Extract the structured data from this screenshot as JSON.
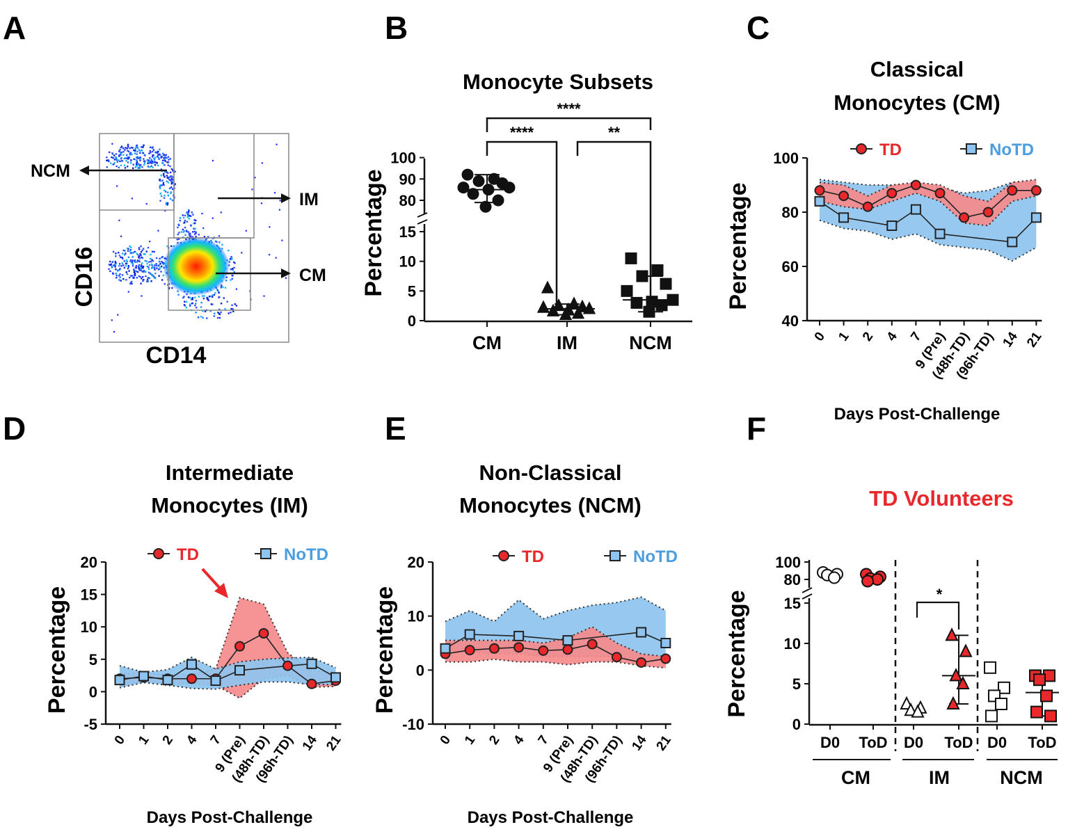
{
  "colors": {
    "td": "#e8282b",
    "td_band": "#f58a8c",
    "notd": "#5aa8e6",
    "notd_band": "#8ec4ef",
    "notd_text": "#4a9ee0",
    "text": "#111111"
  },
  "panels": {
    "a": "A",
    "b": "B",
    "c": "C",
    "d": "D",
    "e": "E",
    "f": "F"
  },
  "panel_a": {
    "xlabel": "CD14",
    "ylabel": "CD16",
    "gates": {
      "ncm": "NCM",
      "im": "IM",
      "cm": "CM"
    }
  },
  "panel_f": {
    "title": "TD Volunteers",
    "group_labels": [
      "CM",
      "IM",
      "NCM"
    ],
    "sub_labels": [
      "D0",
      "ToD"
    ]
  },
  "x_axis_title": "Days Post-Challenge",
  "y_axis_title": "Percentage",
  "chart_data": [
    {
      "id": "B",
      "type": "scatter",
      "title": "Monocyte Subsets",
      "ylabel": "Percentage",
      "categories": [
        "CM",
        "IM",
        "NCM"
      ],
      "y_break": [
        15,
        75
      ],
      "yticks_lower": [
        0,
        5,
        10,
        15
      ],
      "yticks_upper": [
        80,
        90,
        100
      ],
      "series": [
        {
          "name": "CM",
          "marker": "circle",
          "values": [
            92,
            90,
            89,
            88,
            86,
            86,
            85,
            83,
            80,
            77
          ],
          "mean": 85,
          "sd": [
            79,
            92
          ]
        },
        {
          "name": "IM",
          "marker": "triangle",
          "values": [
            5.5,
            2.8,
            2.5,
            2.3,
            2.2,
            2.0,
            1.8,
            1.6,
            1.2,
            1.0
          ],
          "mean": 2,
          "sd": [
            1.0,
            2.8
          ]
        },
        {
          "name": "NCM",
          "marker": "square",
          "values": [
            10.5,
            8.5,
            7.5,
            6.2,
            5.0,
            3.5,
            3.2,
            3.0,
            2.6,
            1.5
          ],
          "mean": 3.5,
          "sd": [
            1.5,
            7.5
          ]
        }
      ],
      "significance": [
        {
          "pair": [
            "CM",
            "NCM"
          ],
          "label": "****"
        },
        {
          "pair": [
            "CM",
            "IM"
          ],
          "label": "****"
        },
        {
          "pair": [
            "IM",
            "NCM"
          ],
          "label": "**"
        }
      ]
    },
    {
      "id": "C",
      "type": "line",
      "title": [
        "Classical",
        "Monocytes (CM)"
      ],
      "xlabel": "Days Post-Challenge",
      "ylabel": "Percentage",
      "x": [
        "0",
        "1",
        "2",
        "4",
        "7",
        "9 (Pre)",
        "(48h-TD)",
        "(96h-TD)",
        "14",
        "21"
      ],
      "ylim": [
        40,
        100
      ],
      "yticks": [
        40,
        60,
        80,
        100
      ],
      "series": [
        {
          "name": "TD",
          "values": [
            88,
            86,
            82,
            87,
            90,
            87,
            78,
            80,
            88,
            88
          ],
          "band_low": [
            84,
            82,
            81,
            84,
            87,
            84,
            76,
            75,
            84,
            86
          ],
          "band_high": [
            91,
            90,
            86,
            90,
            91,
            90,
            86,
            84,
            91,
            92
          ]
        },
        {
          "name": "NoTD",
          "values": [
            84,
            78,
            null,
            75,
            81,
            72,
            null,
            null,
            69,
            78
          ],
          "band_low": [
            77,
            74,
            73,
            70,
            72,
            68,
            67,
            66,
            62,
            67
          ],
          "band_high": [
            92,
            91,
            90,
            90,
            90,
            89,
            87,
            88,
            91,
            91
          ]
        }
      ],
      "legend": [
        "TD",
        "NoTD"
      ]
    },
    {
      "id": "D",
      "type": "line",
      "title": [
        "Intermediate",
        "Monocytes (IM)"
      ],
      "xlabel": "Days Post-Challenge",
      "ylabel": "Percentage",
      "x": [
        "0",
        "1",
        "2",
        "4",
        "7",
        "9 (Pre)",
        "(48h-TD)",
        "(96h-TD)",
        "14",
        "21"
      ],
      "ylim": [
        -5,
        20
      ],
      "yticks": [
        -5,
        0,
        5,
        10,
        15,
        20
      ],
      "series": [
        {
          "name": "TD",
          "values": [
            2,
            2.2,
            2,
            2,
            2,
            7,
            9,
            4,
            1.2,
            1.7
          ],
          "band_low": [
            1,
            1.5,
            1.3,
            1.2,
            1,
            -1,
            2,
            2.5,
            0.7,
            0.8
          ],
          "band_high": [
            2.8,
            3,
            2.6,
            2.7,
            3.5,
            14.5,
            13.5,
            6,
            3.2,
            3
          ]
        },
        {
          "name": "NoTD",
          "values": [
            1.8,
            2.4,
            1.8,
            4.2,
            1.7,
            3.3,
            null,
            null,
            4.3,
            2.2
          ],
          "band_low": [
            0.6,
            1.4,
            1,
            0.5,
            0.4,
            1,
            1.5,
            1.5,
            1.1,
            1.1
          ],
          "band_high": [
            4,
            3,
            3.4,
            5.3,
            3.5,
            4.6,
            5,
            5.2,
            5.3,
            3.7
          ]
        }
      ],
      "legend": [
        "TD",
        "NoTD"
      ],
      "annotation": "arrow to TD peak at 9 (Pre)"
    },
    {
      "id": "E",
      "type": "line",
      "title": [
        "Non-Classical",
        "Monocytes (NCM)"
      ],
      "xlabel": "Days Post-Challenge",
      "ylabel": "Percentage",
      "x": [
        "0",
        "1",
        "2",
        "4",
        "7",
        "9 (Pre)",
        "(48h-TD)",
        "(96h-TD)",
        "14",
        "21"
      ],
      "ylim": [
        -10,
        20
      ],
      "yticks": [
        -10,
        0,
        10,
        20
      ],
      "series": [
        {
          "name": "TD",
          "values": [
            3,
            3.7,
            4,
            4.2,
            3.6,
            3.8,
            4.8,
            2.4,
            1.4,
            2.1
          ],
          "band_low": [
            1.5,
            1.5,
            2,
            1.5,
            1.5,
            1,
            1.5,
            1.5,
            0.8,
            0.4
          ],
          "band_high": [
            5.5,
            5.5,
            5.5,
            5.5,
            5,
            6,
            8,
            5,
            3,
            2.5
          ]
        },
        {
          "name": "NoTD",
          "values": [
            4,
            6.6,
            null,
            6.3,
            null,
            5.5,
            null,
            null,
            7,
            5
          ],
          "band_low": [
            3.5,
            3.5,
            3,
            3,
            2.5,
            2.5,
            2.5,
            2.5,
            2,
            2
          ],
          "band_high": [
            9,
            11,
            9,
            13,
            9.5,
            11,
            12,
            12.5,
            13.5,
            11
          ]
        }
      ],
      "legend": [
        "TD",
        "NoTD"
      ]
    },
    {
      "id": "F",
      "type": "scatter",
      "title": "TD Volunteers",
      "ylabel": "Percentage",
      "categories": [
        "D0",
        "ToD",
        "D0",
        "ToD",
        "D0",
        "ToD"
      ],
      "groups": [
        "CM",
        "IM",
        "NCM"
      ],
      "y_break": [
        15,
        75
      ],
      "yticks_lower": [
        0,
        5,
        10,
        15
      ],
      "yticks_upper": [
        80,
        100
      ],
      "series": [
        {
          "group": "CM",
          "day": "D0",
          "marker": "open-circle",
          "values": [
            88,
            86,
            85,
            82
          ]
        },
        {
          "group": "CM",
          "day": "ToD",
          "marker": "red-circle",
          "values": [
            86,
            83,
            81,
            80,
            78
          ]
        },
        {
          "group": "IM",
          "day": "D0",
          "marker": "open-triangle",
          "values": [
            2.5,
            2,
            1.7,
            1.5
          ]
        },
        {
          "group": "IM",
          "day": "ToD",
          "marker": "red-triangle",
          "values": [
            11,
            9,
            6,
            5,
            2.5
          ],
          "mean": 6
        },
        {
          "group": "NCM",
          "day": "D0",
          "marker": "open-square",
          "values": [
            7,
            4.5,
            3.5,
            2.5,
            1
          ]
        },
        {
          "group": "NCM",
          "day": "ToD",
          "marker": "red-square",
          "values": [
            6,
            6,
            5.5,
            3.5,
            1.5,
            1
          ]
        }
      ],
      "significance": [
        {
          "pair": [
            "IM D0",
            "IM ToD"
          ],
          "label": "*"
        }
      ]
    }
  ]
}
